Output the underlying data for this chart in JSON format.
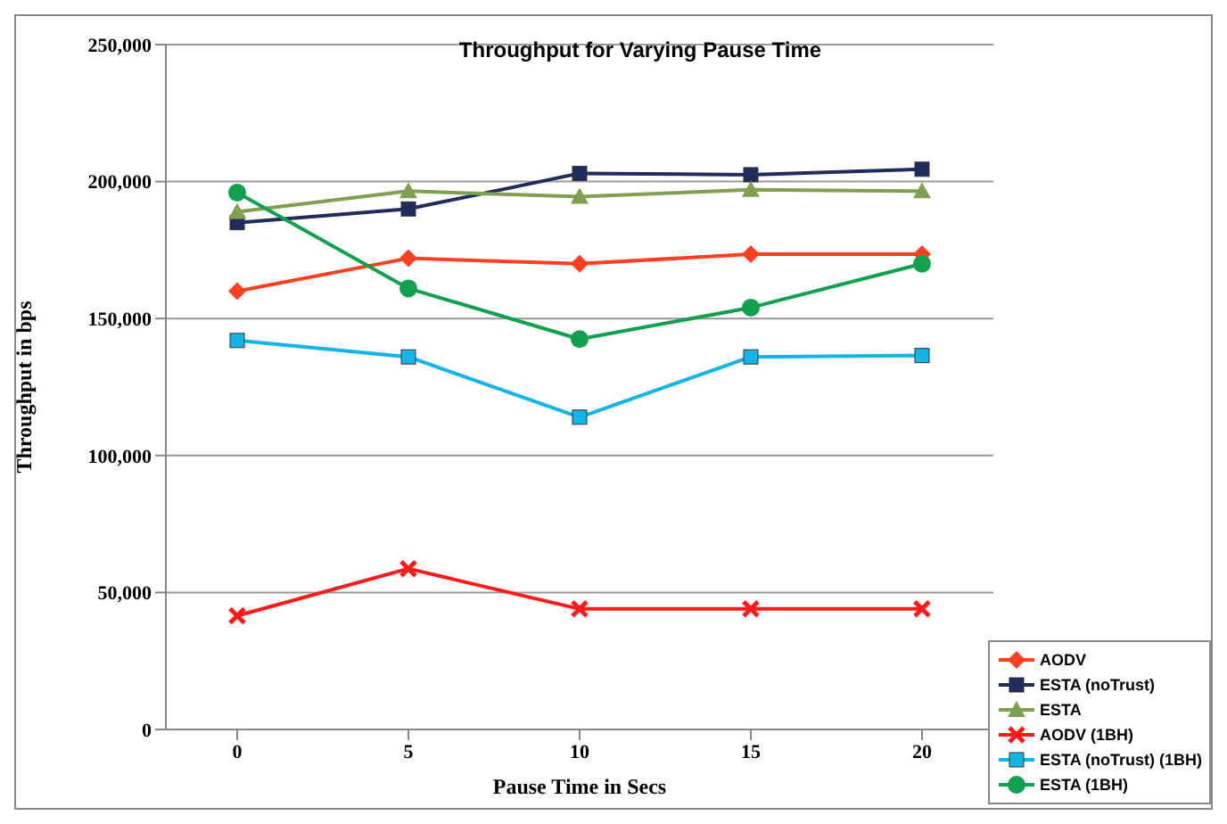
{
  "chart_data": {
    "type": "line",
    "title": "Throughput for Varying Pause Time",
    "xlabel": "Pause Time in Secs",
    "ylabel": "Throughput in bps",
    "categories": [
      "0",
      "5",
      "10",
      "15",
      "20"
    ],
    "series": [
      {
        "name": "AODV",
        "color": "#ff4020",
        "marker": "diamond",
        "values": [
          160000,
          172000,
          170000,
          173500,
          173500
        ]
      },
      {
        "name": "ESTA (noTrust)",
        "color": "#1f2d5c",
        "marker": "square",
        "values": [
          185000,
          190000,
          203000,
          202500,
          204500
        ]
      },
      {
        "name": "ESTA",
        "color": "#7fa050",
        "marker": "triangle",
        "values": [
          189000,
          196500,
          194500,
          197000,
          196500
        ]
      },
      {
        "name": "AODV (1BH)",
        "color": "#ff1a1a",
        "marker": "cross",
        "values": [
          41500,
          58700,
          44000,
          44000,
          44000
        ]
      },
      {
        "name": "ESTA (noTrust) (1BH)",
        "color": "#14b4e6",
        "marker": "square",
        "values": [
          142000,
          136000,
          114000,
          136000,
          136500
        ]
      },
      {
        "name": "ESTA (1BH)",
        "color": "#12a050",
        "marker": "circle",
        "values": [
          196000,
          161000,
          142500,
          154000,
          170000
        ]
      }
    ],
    "ylim": [
      0,
      250000
    ],
    "yticks": [
      {
        "value": 0,
        "label": "0"
      },
      {
        "value": 50000,
        "label": "50,000"
      },
      {
        "value": 100000,
        "label": "100,000"
      },
      {
        "value": 150000,
        "label": "150,000"
      },
      {
        "value": 200000,
        "label": "200,000"
      },
      {
        "value": 250000,
        "label": "250,000"
      }
    ],
    "grid": "y",
    "legend": "bottom right"
  }
}
